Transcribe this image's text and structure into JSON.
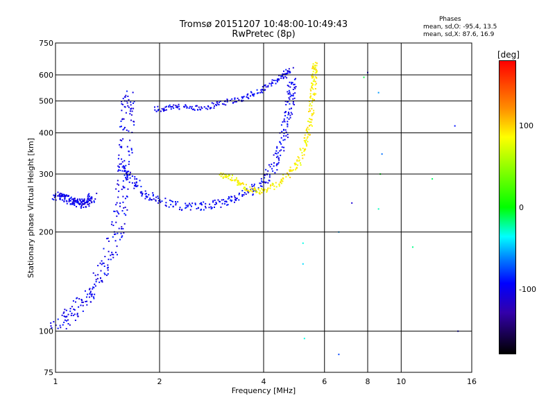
{
  "chart_data": {
    "type": "scatter",
    "title": "Tromsø 20151207 10:48:00-10:49:43",
    "subtitle": "RwPretec (8p)",
    "xlabel": "Frequency [MHz]",
    "ylabel": "Stationary phase Virtual Height [km]",
    "xscale": "log",
    "yscale": "log",
    "xlim": [
      1,
      16
    ],
    "ylim": [
      75,
      750
    ],
    "x_ticks": [
      1,
      2,
      4,
      6,
      8,
      10,
      16
    ],
    "x_tick_labels": [
      "1",
      "2",
      "4",
      "6",
      "8",
      "10",
      "16"
    ],
    "x_grid": [
      1,
      2,
      4,
      6,
      8,
      10,
      16
    ],
    "y_ticks": [
      75,
      100,
      200,
      300,
      400,
      500,
      600,
      750
    ],
    "y_tick_labels": [
      "75",
      "100",
      "200",
      "300",
      "400",
      "500",
      "600",
      "750"
    ],
    "y_grid": [
      100,
      200,
      300,
      400,
      500,
      600
    ],
    "grid": true,
    "phase_header": "Phases",
    "phase_stats": [
      "mean, sd,O: -95.4, 13.5",
      "mean, sd,X: 87.6, 16.9"
    ],
    "colorbar": {
      "unit_label": "[deg]",
      "range": [
        -180,
        180
      ],
      "tick_values": [
        100,
        0,
        -100
      ],
      "tick_labels": [
        "100",
        "0",
        "-100"
      ],
      "colors": [
        "#ff0000",
        "#ff8c00",
        "#ffff00",
        "#00ff00",
        "#00ffff",
        "#0000ff",
        "#000000"
      ]
    },
    "traces": [
      {
        "name_ref": "E-layer blob",
        "points": [
          [
            1.0,
            258
          ],
          [
            1.05,
            255
          ],
          [
            1.1,
            250
          ],
          [
            1.15,
            246
          ],
          [
            1.2,
            243
          ],
          [
            1.25,
            248
          ],
          [
            1.28,
            255
          ]
        ],
        "phase": -100,
        "spread": 3
      },
      {
        "name_ref": "O-mode low spur",
        "points": [
          [
            1.0,
            103
          ],
          [
            1.1,
            112
          ],
          [
            1.2,
            122
          ],
          [
            1.3,
            135
          ],
          [
            1.4,
            160
          ],
          [
            1.5,
            195
          ],
          [
            1.55,
            240
          ],
          [
            1.58,
            300
          ],
          [
            1.6,
            380
          ],
          [
            1.62,
            470
          ],
          [
            1.63,
            520
          ]
        ],
        "phase": -100,
        "spread": 5
      },
      {
        "name_ref": "O-mode F-trace",
        "points": [
          [
            1.55,
            320
          ],
          [
            1.65,
            290
          ],
          [
            1.8,
            262
          ],
          [
            2.0,
            248
          ],
          [
            2.4,
            238
          ],
          [
            2.8,
            240
          ],
          [
            3.2,
            248
          ],
          [
            3.6,
            262
          ],
          [
            4.0,
            285
          ],
          [
            4.3,
            320
          ],
          [
            4.55,
            380
          ],
          [
            4.7,
            450
          ],
          [
            4.8,
            520
          ],
          [
            4.85,
            580
          ]
        ],
        "phase": -98,
        "spread": 3
      },
      {
        "name_ref": "O-mode upper",
        "points": [
          [
            1.95,
            470
          ],
          [
            2.2,
            480
          ],
          [
            2.6,
            475
          ],
          [
            3.0,
            490
          ],
          [
            3.5,
            510
          ],
          [
            4.0,
            545
          ],
          [
            4.5,
            590
          ],
          [
            4.8,
            620
          ]
        ],
        "phase": -100,
        "spread": 2
      },
      {
        "name_ref": "X-mode F-trace",
        "points": [
          [
            3.0,
            300
          ],
          [
            3.3,
            290
          ],
          [
            3.6,
            270
          ],
          [
            4.0,
            265
          ],
          [
            4.5,
            285
          ],
          [
            5.0,
            320
          ],
          [
            5.3,
            370
          ],
          [
            5.45,
            430
          ],
          [
            5.55,
            520
          ],
          [
            5.6,
            600
          ],
          [
            5.62,
            650
          ]
        ],
        "phase": 88,
        "spread": 2
      },
      {
        "name_ref": "scattered points",
        "points": [
          [
            5.2,
            185
          ],
          [
            5.2,
            160
          ],
          [
            5.25,
            95
          ],
          [
            6.6,
            200
          ],
          [
            6.6,
            85
          ],
          [
            7.2,
            245
          ],
          [
            8.6,
            235
          ],
          [
            8.7,
            300
          ],
          [
            8.8,
            345
          ],
          [
            10.8,
            180
          ],
          [
            12.3,
            290
          ],
          [
            14.3,
            420
          ],
          [
            14.6,
            100
          ],
          [
            8.6,
            530
          ],
          [
            7.8,
            590
          ],
          [
            8.0,
            610
          ]
        ],
        "phase": -60,
        "spread": 0
      }
    ]
  }
}
